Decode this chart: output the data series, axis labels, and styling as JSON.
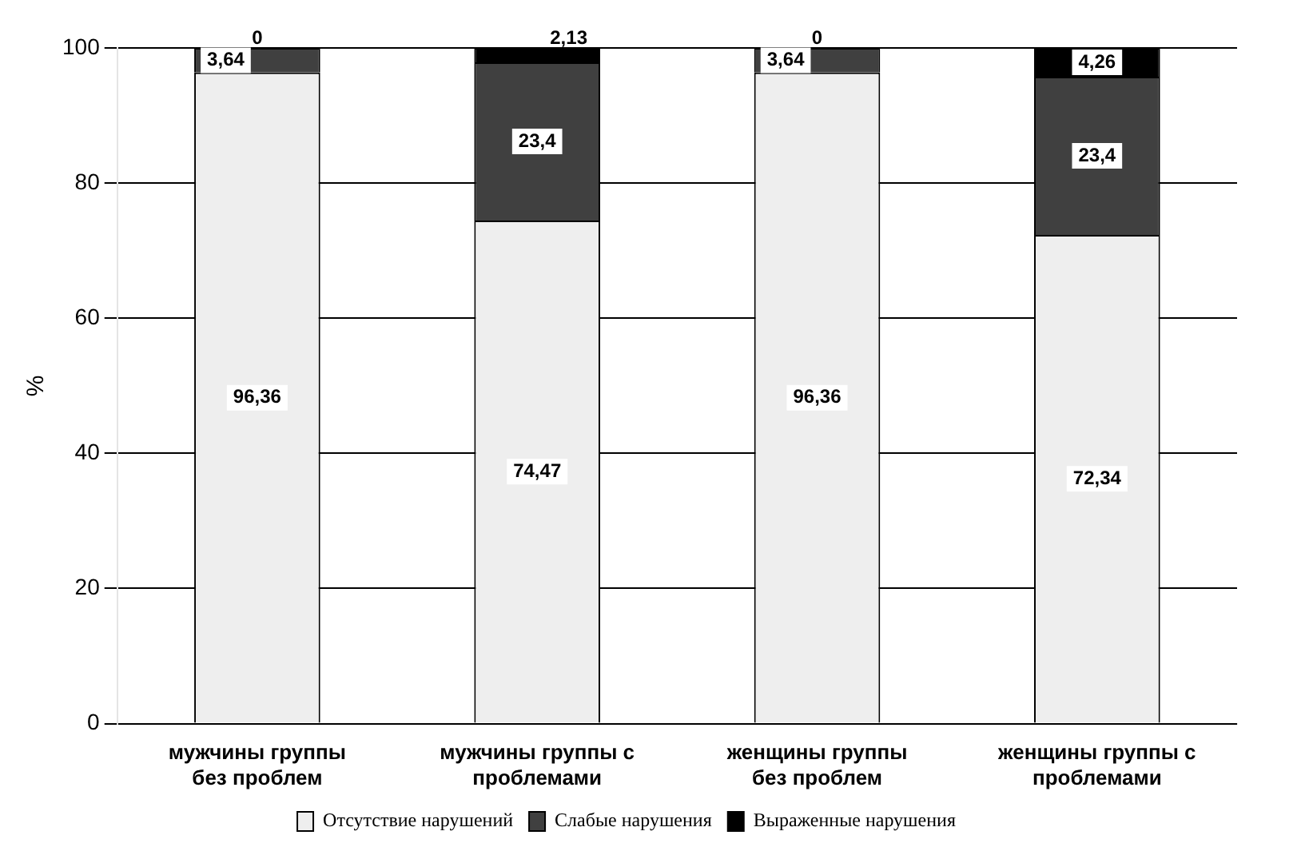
{
  "chart_data": {
    "type": "bar",
    "stacked": true,
    "ylabel": "%",
    "categories": [
      "мужчины группы без проблем",
      "мужчины группы с проблемами",
      "женщины группы без проблем",
      "женщины группы с проблемами"
    ],
    "series": [
      {
        "name": "Отсутствие нарушений",
        "color": "#eeeeee",
        "values": [
          96.36,
          74.47,
          96.36,
          72.34
        ],
        "value_labels": [
          "96,36",
          "74,47",
          "96,36",
          "72,34"
        ]
      },
      {
        "name": "Слабые нарушения",
        "color": "#404040",
        "values": [
          3.64,
          23.4,
          3.64,
          23.4
        ],
        "value_labels": [
          "3,64",
          "23,4",
          "3,64",
          "23,4"
        ]
      },
      {
        "name": "Выраженные нарушения",
        "color": "#000000",
        "values": [
          0,
          2.13,
          0,
          4.26
        ],
        "value_labels": [
          "0",
          "2,13",
          "0",
          "4,26"
        ]
      }
    ],
    "ylim": [
      0,
      100
    ],
    "yticks": [
      0,
      20,
      40,
      60,
      80,
      100
    ],
    "grid": "y",
    "legend": "bottom"
  }
}
